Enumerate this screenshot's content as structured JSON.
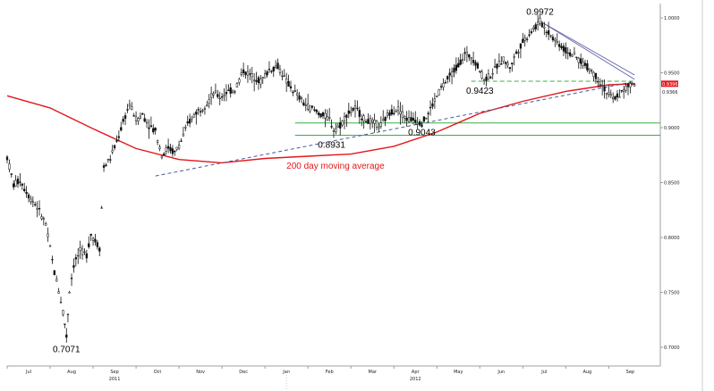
{
  "chart_data": {
    "type": "candlestick",
    "y_axis": {
      "ticks": [
        "1.0000",
        "0.9500",
        "0.9000",
        "0.8500",
        "0.8000",
        "0.7500",
        "0.7000"
      ],
      "tick_values": [
        1.0,
        0.95,
        0.9,
        0.85,
        0.8,
        0.75,
        0.7
      ],
      "ylim": [
        0.683,
        1.013
      ],
      "position": "right"
    },
    "x_axis": {
      "months": [
        "Jul",
        "Aug",
        "Sep",
        "Oct",
        "Nov",
        "Dec",
        "Jan",
        "Feb",
        "Mar",
        "Apr",
        "May",
        "Jun",
        "Jul",
        "Aug",
        "Sep"
      ],
      "month_index": [
        0,
        1,
        2,
        3,
        4,
        5,
        6,
        7,
        8,
        9,
        10,
        11,
        12,
        13,
        14
      ],
      "years": [
        "2011",
        "2012"
      ],
      "year_month_index": [
        3,
        10
      ],
      "range": [
        0,
        15.2
      ]
    },
    "price": [
      [
        0,
        0.873
      ],
      [
        0.15,
        0.848
      ],
      [
        0.3,
        0.852
      ],
      [
        0.5,
        0.838
      ],
      [
        0.7,
        0.828
      ],
      [
        0.9,
        0.812
      ],
      [
        1.0,
        0.79
      ],
      [
        1.1,
        0.768
      ],
      [
        1.2,
        0.752
      ],
      [
        1.3,
        0.733
      ],
      [
        1.38,
        0.71
      ],
      [
        1.45,
        0.752
      ],
      [
        1.55,
        0.775
      ],
      [
        1.7,
        0.788
      ],
      [
        1.85,
        0.784
      ],
      [
        1.95,
        0.803
      ],
      [
        2.05,
        0.797
      ],
      [
        2.15,
        0.79
      ],
      [
        2.25,
        0.864
      ],
      [
        2.4,
        0.872
      ],
      [
        2.55,
        0.887
      ],
      [
        2.7,
        0.905
      ],
      [
        2.85,
        0.922
      ],
      [
        3.0,
        0.907
      ],
      [
        3.15,
        0.912
      ],
      [
        3.3,
        0.902
      ],
      [
        3.45,
        0.897
      ],
      [
        3.6,
        0.875
      ],
      [
        3.75,
        0.882
      ],
      [
        3.9,
        0.877
      ],
      [
        4.05,
        0.888
      ],
      [
        4.2,
        0.903
      ],
      [
        4.35,
        0.912
      ],
      [
        4.5,
        0.917
      ],
      [
        4.65,
        0.922
      ],
      [
        4.8,
        0.932
      ],
      [
        4.95,
        0.928
      ],
      [
        5.1,
        0.932
      ],
      [
        5.3,
        0.935
      ],
      [
        5.5,
        0.952
      ],
      [
        5.7,
        0.947
      ],
      [
        5.9,
        0.942
      ],
      [
        6.1,
        0.953
      ],
      [
        6.3,
        0.956
      ],
      [
        6.5,
        0.942
      ],
      [
        6.7,
        0.932
      ],
      [
        6.9,
        0.922
      ],
      [
        7.1,
        0.917
      ],
      [
        7.3,
        0.912
      ],
      [
        7.5,
        0.908
      ],
      [
        7.6,
        0.898
      ],
      [
        7.75,
        0.902
      ],
      [
        7.9,
        0.912
      ],
      [
        8.1,
        0.918
      ],
      [
        8.3,
        0.908
      ],
      [
        8.5,
        0.905
      ],
      [
        8.7,
        0.902
      ],
      [
        8.9,
        0.914
      ],
      [
        9.1,
        0.917
      ],
      [
        9.3,
        0.908
      ],
      [
        9.5,
        0.907
      ],
      [
        9.65,
        0.904
      ],
      [
        9.8,
        0.913
      ],
      [
        9.95,
        0.925
      ],
      [
        10.1,
        0.936
      ],
      [
        10.3,
        0.947
      ],
      [
        10.5,
        0.957
      ],
      [
        10.65,
        0.967
      ],
      [
        10.8,
        0.965
      ],
      [
        10.95,
        0.956
      ],
      [
        11.1,
        0.944
      ],
      [
        11.25,
        0.948
      ],
      [
        11.4,
        0.956
      ],
      [
        11.55,
        0.962
      ],
      [
        11.7,
        0.955
      ],
      [
        11.85,
        0.968
      ],
      [
        12.0,
        0.978
      ],
      [
        12.15,
        0.986
      ],
      [
        12.3,
        0.992
      ],
      [
        12.4,
        0.997
      ],
      [
        12.55,
        0.989
      ],
      [
        12.7,
        0.982
      ],
      [
        12.85,
        0.976
      ],
      [
        13.0,
        0.97
      ],
      [
        13.15,
        0.967
      ],
      [
        13.3,
        0.962
      ],
      [
        13.45,
        0.957
      ],
      [
        13.6,
        0.952
      ],
      [
        13.8,
        0.942
      ],
      [
        13.95,
        0.932
      ],
      [
        14.1,
        0.926
      ],
      [
        14.25,
        0.93
      ],
      [
        14.4,
        0.936
      ],
      [
        14.55,
        0.94
      ],
      [
        14.65,
        0.939
      ]
    ],
    "moving_average_200": [
      [
        0,
        0.929
      ],
      [
        1,
        0.918
      ],
      [
        2,
        0.899
      ],
      [
        3,
        0.881
      ],
      [
        4,
        0.871
      ],
      [
        5,
        0.868
      ],
      [
        6,
        0.872
      ],
      [
        7,
        0.874
      ],
      [
        8,
        0.876
      ],
      [
        9,
        0.883
      ],
      [
        10,
        0.896
      ],
      [
        11,
        0.913
      ],
      [
        12,
        0.924
      ],
      [
        13,
        0.933
      ],
      [
        14,
        0.939
      ],
      [
        14.6,
        0.94
      ]
    ],
    "support_line": [
      [
        3.45,
        0.856
      ],
      [
        14.6,
        0.942
      ]
    ],
    "trend_lines": [
      [
        [
          12.4,
          0.997
        ],
        [
          14.6,
          0.948
        ]
      ],
      [
        [
          12.4,
          0.997
        ],
        [
          14.6,
          0.944
        ]
      ]
    ],
    "horizontal_levels": [
      {
        "value": 0.9423,
        "x0": 10.8,
        "x1": 14.6,
        "style": "dashed",
        "color": "#3cb043"
      },
      {
        "value": 0.9043,
        "x0": 6.7,
        "x1": 15.2,
        "style": "solid",
        "color": "#3cb043"
      },
      {
        "value": 0.8931,
        "x0": 6.7,
        "x1": 15.2,
        "style": "solid",
        "color": "#3cb043"
      }
    ],
    "annotations": [
      {
        "text": "0.9972",
        "x": 12.4,
        "y": 0.997,
        "pos": "above"
      },
      {
        "text": "0.9423",
        "x": 11.0,
        "y": 0.9423,
        "pos": "below"
      },
      {
        "text": "0.9043",
        "x": 9.65,
        "y": 0.9043,
        "pos": "below"
      },
      {
        "text": "0.8931",
        "x": 7.55,
        "y": 0.8931,
        "pos": "below"
      },
      {
        "text": "0.7071",
        "x": 1.38,
        "y": 0.7071,
        "pos": "below"
      }
    ],
    "ma_label": "200 day moving average",
    "last_price_label": "0.9366",
    "last_ma_label": "0.9396",
    "colors": {
      "price": "#111111",
      "ma": "#e3161b",
      "support": "#4a5a9a",
      "trend": "#5b5ea6",
      "level": "#3cb043",
      "axis": "#9aa0a6",
      "last_price_box": "#e3161b"
    }
  }
}
